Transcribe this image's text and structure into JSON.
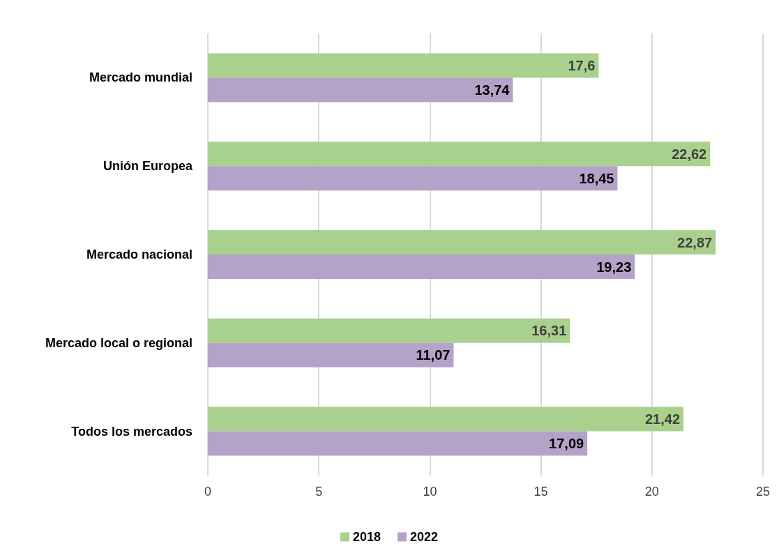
{
  "chart_data": {
    "type": "bar",
    "orientation": "horizontal",
    "categories": [
      "Mercado mundial",
      "Unión Europea",
      "Mercado nacional",
      "Mercado local o regional",
      "Todos los mercados"
    ],
    "series": [
      {
        "name": "2018",
        "color": "#a9d18e",
        "values": [
          17.6,
          22.62,
          22.87,
          16.31,
          21.42
        ],
        "value_labels": [
          "17,6",
          "22,62",
          "22,87",
          "16,31",
          "21,42"
        ]
      },
      {
        "name": "2022",
        "color": "#b4a2c8",
        "values": [
          13.74,
          18.45,
          19.23,
          11.07,
          17.09
        ],
        "value_labels": [
          "13,74",
          "18,45",
          "19,23",
          "11,07",
          "17,09"
        ]
      }
    ],
    "xlim": [
      0,
      25
    ],
    "xticks": [
      0,
      5,
      10,
      15,
      20,
      25
    ],
    "grid": "x",
    "legend": "bottom"
  }
}
